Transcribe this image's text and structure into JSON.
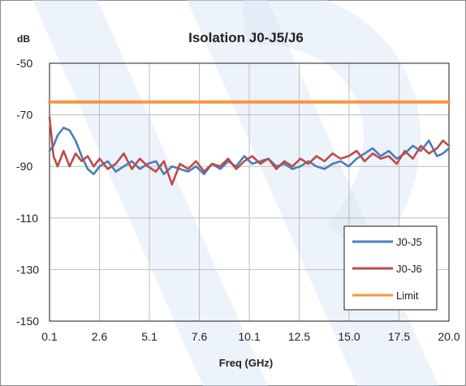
{
  "chart_data": {
    "type": "line",
    "title": "Isolation J0-J5/J6",
    "ylabel": "dB",
    "xlabel": "Freq (GHz)",
    "xlim": [
      0.1,
      20.0
    ],
    "ylim": [
      -150,
      -50
    ],
    "xticks": [
      "0.1",
      "2.6",
      "5.1",
      "7.6",
      "10.1",
      "12.5",
      "15.0",
      "17.5",
      "20.0"
    ],
    "yticks": [
      "-50",
      "-70",
      "-90",
      "-110",
      "-130",
      "-150"
    ],
    "grid": true,
    "legend_position": "bottom-right",
    "series": [
      {
        "name": "J0-J5",
        "color": "#4a7ebb",
        "x": [
          0.1,
          0.3,
          0.5,
          0.8,
          1.1,
          1.4,
          1.7,
          2.0,
          2.3,
          2.6,
          3.0,
          3.4,
          3.8,
          4.2,
          4.6,
          5.0,
          5.4,
          5.8,
          6.2,
          6.6,
          7.0,
          7.4,
          7.8,
          8.2,
          8.6,
          9.0,
          9.4,
          9.8,
          10.2,
          10.6,
          11.0,
          11.4,
          11.8,
          12.2,
          12.6,
          13.0,
          13.4,
          13.8,
          14.2,
          14.6,
          15.0,
          15.4,
          15.8,
          16.2,
          16.6,
          17.0,
          17.4,
          17.8,
          18.2,
          18.6,
          19.0,
          19.4,
          19.7,
          20.0
        ],
        "y": [
          -84,
          -82,
          -78,
          -75,
          -76,
          -80,
          -86,
          -91,
          -93,
          -90,
          -88,
          -92,
          -90,
          -88,
          -91,
          -89,
          -88,
          -93,
          -90,
          -91,
          -92,
          -90,
          -93,
          -89,
          -91,
          -88,
          -90,
          -86,
          -89,
          -88,
          -87,
          -90,
          -89,
          -91,
          -90,
          -88,
          -90,
          -91,
          -89,
          -88,
          -90,
          -87,
          -85,
          -83,
          -86,
          -84,
          -87,
          -85,
          -82,
          -84,
          -80,
          -86,
          -85,
          -83
        ]
      },
      {
        "name": "J0-J6",
        "color": "#be4b48",
        "x": [
          0.1,
          0.3,
          0.5,
          0.8,
          1.1,
          1.4,
          1.7,
          2.0,
          2.3,
          2.6,
          3.0,
          3.4,
          3.8,
          4.2,
          4.6,
          5.0,
          5.4,
          5.8,
          6.2,
          6.6,
          7.0,
          7.4,
          7.8,
          8.2,
          8.6,
          9.0,
          9.4,
          9.8,
          10.2,
          10.6,
          11.0,
          11.4,
          11.8,
          12.2,
          12.6,
          13.0,
          13.4,
          13.8,
          14.2,
          14.6,
          15.0,
          15.4,
          15.8,
          16.2,
          16.6,
          17.0,
          17.4,
          17.8,
          18.2,
          18.6,
          19.0,
          19.4,
          19.7,
          20.0
        ],
        "y": [
          -71,
          -86,
          -90,
          -84,
          -90,
          -85,
          -88,
          -86,
          -90,
          -87,
          -91,
          -89,
          -85,
          -91,
          -87,
          -90,
          -92,
          -88,
          -97,
          -89,
          -91,
          -88,
          -92,
          -89,
          -90,
          -87,
          -91,
          -88,
          -86,
          -89,
          -87,
          -91,
          -88,
          -90,
          -87,
          -89,
          -86,
          -88,
          -85,
          -87,
          -86,
          -84,
          -88,
          -85,
          -87,
          -86,
          -89,
          -84,
          -87,
          -82,
          -85,
          -83,
          -80,
          -82
        ]
      },
      {
        "name": "Limit",
        "color": "#f79646",
        "x": [
          0.1,
          20.0
        ],
        "y": [
          -65,
          -65
        ]
      }
    ]
  }
}
